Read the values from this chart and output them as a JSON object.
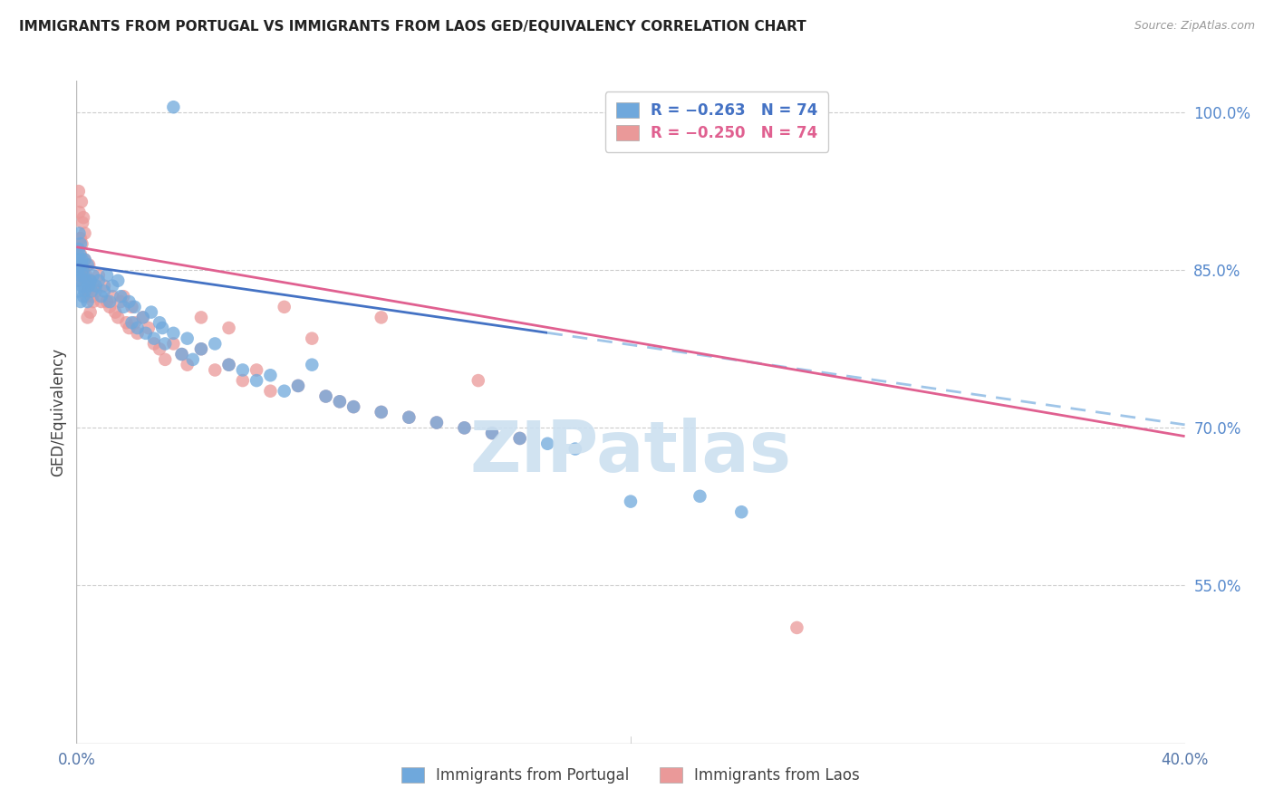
{
  "title": "IMMIGRANTS FROM PORTUGAL VS IMMIGRANTS FROM LAOS GED/EQUIVALENCY CORRELATION CHART",
  "source": "Source: ZipAtlas.com",
  "ylabel": "GED/Equivalency",
  "right_yticks": [
    100.0,
    85.0,
    70.0,
    55.0
  ],
  "xmin": 0.0,
  "xmax": 40.0,
  "ymin": 40.0,
  "ymax": 103.0,
  "portugal_color": "#6fa8dc",
  "laos_color": "#ea9999",
  "portugal_line_color": "#4472c4",
  "laos_line_color": "#e06090",
  "dashed_line_color": "#9fc5e8",
  "watermark": "ZIPatlas",
  "watermark_color": "#cce0f0",
  "port_intercept": 85.5,
  "port_slope": -0.38,
  "laos_intercept": 87.2,
  "laos_slope": -0.45,
  "blue_solid_end_x": 17.0,
  "portugal_scatter_x": [
    0.05,
    0.05,
    0.08,
    0.08,
    0.1,
    0.1,
    0.12,
    0.12,
    0.15,
    0.15,
    0.18,
    0.2,
    0.2,
    0.22,
    0.25,
    0.25,
    0.3,
    0.3,
    0.35,
    0.4,
    0.4,
    0.45,
    0.5,
    0.55,
    0.6,
    0.7,
    0.8,
    0.9,
    1.0,
    1.1,
    1.2,
    1.3,
    1.5,
    1.6,
    1.7,
    1.9,
    2.0,
    2.1,
    2.2,
    2.4,
    2.5,
    2.7,
    2.8,
    3.0,
    3.1,
    3.2,
    3.5,
    3.8,
    4.0,
    4.2,
    4.5,
    5.0,
    5.5,
    6.0,
    6.5,
    7.0,
    7.5,
    8.0,
    8.5,
    9.0,
    9.5,
    10.0,
    11.0,
    12.0,
    13.0,
    14.0,
    15.0,
    16.0,
    17.0,
    18.0,
    20.0,
    22.5,
    24.0,
    3.5
  ],
  "portugal_scatter_y": [
    86.0,
    85.0,
    87.0,
    84.0,
    88.5,
    83.0,
    86.5,
    84.5,
    87.5,
    82.0,
    85.5,
    86.0,
    83.5,
    85.0,
    84.5,
    82.5,
    86.0,
    83.0,
    84.0,
    85.5,
    82.0,
    83.5,
    84.0,
    83.0,
    84.5,
    83.5,
    84.0,
    82.5,
    83.0,
    84.5,
    82.0,
    83.5,
    84.0,
    82.5,
    81.5,
    82.0,
    80.0,
    81.5,
    79.5,
    80.5,
    79.0,
    81.0,
    78.5,
    80.0,
    79.5,
    78.0,
    79.0,
    77.0,
    78.5,
    76.5,
    77.5,
    78.0,
    76.0,
    75.5,
    74.5,
    75.0,
    73.5,
    74.0,
    76.0,
    73.0,
    72.5,
    72.0,
    71.5,
    71.0,
    70.5,
    70.0,
    69.5,
    69.0,
    68.5,
    68.0,
    63.0,
    63.5,
    62.0,
    100.5
  ],
  "laos_scatter_x": [
    0.05,
    0.05,
    0.08,
    0.1,
    0.12,
    0.15,
    0.18,
    0.2,
    0.22,
    0.25,
    0.28,
    0.3,
    0.35,
    0.4,
    0.45,
    0.5,
    0.55,
    0.6,
    0.7,
    0.8,
    0.9,
    1.0,
    1.1,
    1.2,
    1.3,
    1.4,
    1.5,
    1.6,
    1.8,
    1.9,
    2.0,
    2.2,
    2.4,
    2.6,
    2.8,
    3.0,
    3.2,
    3.5,
    4.0,
    4.5,
    5.0,
    5.5,
    6.0,
    6.5,
    7.0,
    8.0,
    9.0,
    10.0,
    11.0,
    12.0,
    13.0,
    14.0,
    15.0,
    16.0,
    5.5,
    9.5,
    0.3,
    0.25,
    0.35,
    0.4,
    0.22,
    0.18,
    0.5,
    4.5,
    7.5,
    14.5,
    11.0,
    8.5,
    3.8,
    2.1,
    1.7,
    26.0,
    0.6,
    0.15
  ],
  "laos_scatter_y": [
    87.0,
    84.0,
    92.5,
    90.5,
    88.0,
    86.5,
    85.5,
    87.5,
    84.5,
    85.0,
    83.5,
    86.0,
    84.5,
    83.0,
    85.5,
    84.0,
    82.5,
    83.5,
    83.0,
    84.5,
    82.0,
    83.5,
    82.0,
    81.5,
    82.5,
    81.0,
    80.5,
    82.0,
    80.0,
    79.5,
    81.5,
    79.0,
    80.5,
    79.5,
    78.0,
    77.5,
    76.5,
    78.0,
    76.0,
    77.5,
    75.5,
    76.0,
    74.5,
    75.5,
    73.5,
    74.0,
    73.0,
    72.0,
    71.5,
    71.0,
    70.5,
    70.0,
    69.5,
    69.0,
    79.5,
    72.5,
    88.5,
    90.0,
    82.5,
    80.5,
    89.5,
    91.5,
    81.0,
    80.5,
    81.5,
    74.5,
    80.5,
    78.5,
    77.0,
    80.0,
    82.5,
    51.0,
    82.0,
    88.0
  ]
}
